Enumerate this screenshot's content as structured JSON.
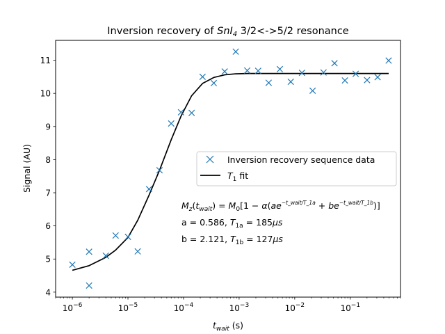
{
  "chart_data": {
    "type": "scatter",
    "title": {
      "prefix": "Inversion recovery of ",
      "compound_base": "SnI",
      "compound_sub": "4",
      "suffix": " 3/2<->5/2 resonance"
    },
    "xlabel": {
      "base": "t",
      "sub": "wait",
      "unit": " (s)"
    },
    "ylabel": "Signal (AU)",
    "x_scale": "log",
    "xlim": [
      5e-07,
      0.8
    ],
    "ylim": [
      3.85,
      11.6
    ],
    "xticks": [
      {
        "value": 1e-06,
        "base": "10",
        "exp": "−6"
      },
      {
        "value": 1e-05,
        "base": "10",
        "exp": "−5"
      },
      {
        "value": 0.0001,
        "base": "10",
        "exp": "−4"
      },
      {
        "value": 0.001,
        "base": "10",
        "exp": "−3"
      },
      {
        "value": 0.01,
        "base": "10",
        "exp": "−2"
      },
      {
        "value": 0.1,
        "base": "10",
        "exp": "−1"
      }
    ],
    "yticks": [
      {
        "value": 4,
        "label": "4"
      },
      {
        "value": 5,
        "label": "5"
      },
      {
        "value": 6,
        "label": "6"
      },
      {
        "value": 7,
        "label": "7"
      },
      {
        "value": 8,
        "label": "8"
      },
      {
        "value": 9,
        "label": "9"
      },
      {
        "value": 10,
        "label": "10"
      },
      {
        "value": 11,
        "label": "11"
      }
    ],
    "grid": false,
    "legend": {
      "placement": "center-right",
      "entries": [
        {
          "label": "Inversion recovery sequence data",
          "marker": "x"
        },
        {
          "label_base": "T",
          "label_sub": "1",
          "label_suffix": " fit",
          "marker": "line"
        }
      ]
    },
    "series": [
      {
        "name": "Inversion recovery sequence data",
        "kind": "scatter",
        "color": "#1f77b4",
        "points": [
          {
            "x": 1e-06,
            "y": 4.83
          },
          {
            "x": 2e-06,
            "y": 5.22
          },
          {
            "x": 2e-06,
            "y": 4.2
          },
          {
            "x": 4e-06,
            "y": 5.1
          },
          {
            "x": 6e-06,
            "y": 5.71
          },
          {
            "x": 1e-05,
            "y": 5.67
          },
          {
            "x": 1.5e-05,
            "y": 5.23
          },
          {
            "x": 2.4e-05,
            "y": 7.11
          },
          {
            "x": 3.7e-05,
            "y": 7.68
          },
          {
            "x": 6e-05,
            "y": 9.09
          },
          {
            "x": 9e-05,
            "y": 9.43
          },
          {
            "x": 0.00014,
            "y": 9.41
          },
          {
            "x": 0.00022,
            "y": 10.5
          },
          {
            "x": 0.00035,
            "y": 10.31
          },
          {
            "x": 0.00055,
            "y": 10.66
          },
          {
            "x": 0.00087,
            "y": 11.26
          },
          {
            "x": 0.0014,
            "y": 10.69
          },
          {
            "x": 0.0022,
            "y": 10.68
          },
          {
            "x": 0.0034,
            "y": 10.32
          },
          {
            "x": 0.0054,
            "y": 10.73
          },
          {
            "x": 0.0085,
            "y": 10.35
          },
          {
            "x": 0.0135,
            "y": 10.62
          },
          {
            "x": 0.021,
            "y": 10.08
          },
          {
            "x": 0.033,
            "y": 10.63
          },
          {
            "x": 0.052,
            "y": 10.91
          },
          {
            "x": 0.08,
            "y": 10.39
          },
          {
            "x": 0.125,
            "y": 10.59
          },
          {
            "x": 0.2,
            "y": 10.4
          },
          {
            "x": 0.31,
            "y": 10.49
          },
          {
            "x": 0.49,
            "y": 10.99
          }
        ]
      },
      {
        "name": "T1 fit",
        "kind": "line",
        "color": "#000000",
        "points": [
          {
            "x": 1e-06,
            "y": 4.66
          },
          {
            "x": 2e-06,
            "y": 4.8
          },
          {
            "x": 4e-06,
            "y": 5.05
          },
          {
            "x": 6e-06,
            "y": 5.27
          },
          {
            "x": 1e-05,
            "y": 5.65
          },
          {
            "x": 1.5e-05,
            "y": 6.17
          },
          {
            "x": 2.4e-05,
            "y": 6.93
          },
          {
            "x": 3.7e-05,
            "y": 7.68
          },
          {
            "x": 6e-05,
            "y": 8.6
          },
          {
            "x": 9e-05,
            "y": 9.31
          },
          {
            "x": 0.00014,
            "y": 9.93
          },
          {
            "x": 0.00022,
            "y": 10.3
          },
          {
            "x": 0.00035,
            "y": 10.48
          },
          {
            "x": 0.00055,
            "y": 10.56
          },
          {
            "x": 0.00087,
            "y": 10.59
          },
          {
            "x": 0.0014,
            "y": 10.6
          },
          {
            "x": 0.0034,
            "y": 10.6
          },
          {
            "x": 0.0085,
            "y": 10.6
          },
          {
            "x": 0.021,
            "y": 10.6
          },
          {
            "x": 0.052,
            "y": 10.6
          },
          {
            "x": 0.125,
            "y": 10.6
          },
          {
            "x": 0.31,
            "y": 10.6
          },
          {
            "x": 0.49,
            "y": 10.6
          }
        ]
      }
    ],
    "annotations": {
      "equation": {
        "lhs_base": "M",
        "lhs_sub": "z",
        "lhs_arg_base": "t",
        "lhs_arg_sub": "wait",
        "eq": ") = ",
        "rhs_base": "M",
        "rhs_sub": "0",
        "bracket_open": "[1 − ",
        "alpha": "α",
        "paren_open": "(",
        "a": "a",
        "e": "e",
        "exp1": "−t_wait/T_1a",
        "plus": " + ",
        "b": "b",
        "exp2": "−t_wait/T_1b",
        "close": ")]"
      },
      "line_a": {
        "prefix": "a = 0.586, ",
        "T": "T",
        "sub": "1a",
        "eq": " = ",
        "value": "185",
        "unit": "μs"
      },
      "line_b": {
        "prefix": "b = 2.121, ",
        "T": "T",
        "sub": "1b",
        "eq": " = ",
        "value": "127",
        "unit": "μs"
      }
    }
  }
}
